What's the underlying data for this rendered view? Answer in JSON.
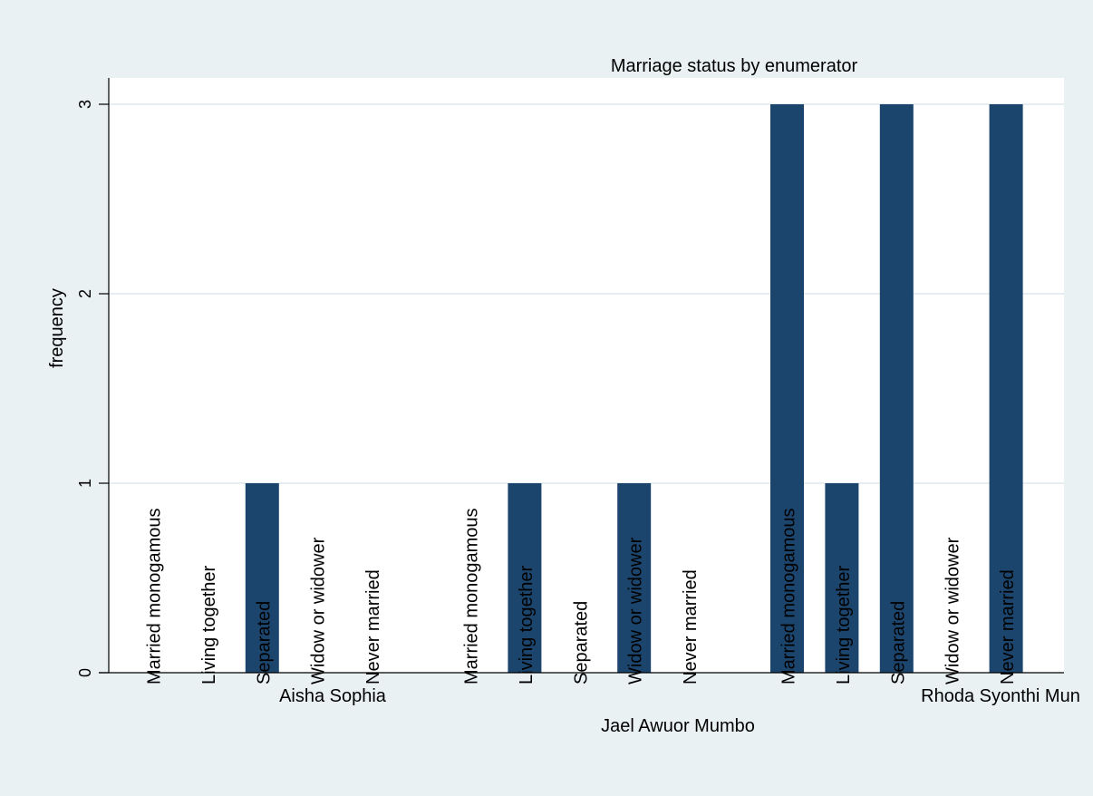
{
  "chart_data": {
    "type": "bar",
    "title": "Marriage status by enumerator",
    "ylabel": "frequency",
    "xlabel": "",
    "ylim": [
      0,
      3
    ],
    "yticks": [
      0,
      1,
      2,
      3
    ],
    "grid": true,
    "colors": {
      "bar": "#1c456d",
      "background": "#eaf1f3",
      "plot": "#ffffff",
      "grid": "#e6eef2"
    },
    "categories": [
      "Married monogamous",
      "Living together",
      "Separated",
      "Widow or widower",
      "Never married"
    ],
    "groups": [
      {
        "name": "Aisha Sophia",
        "values": [
          0,
          0,
          1,
          0,
          0
        ]
      },
      {
        "name": "Jael Awuor Mumbo",
        "values": [
          0,
          1,
          0,
          1,
          0
        ]
      },
      {
        "name": "Rhoda Syonthi Mun",
        "values": [
          3,
          1,
          3,
          0,
          3
        ]
      }
    ]
  }
}
